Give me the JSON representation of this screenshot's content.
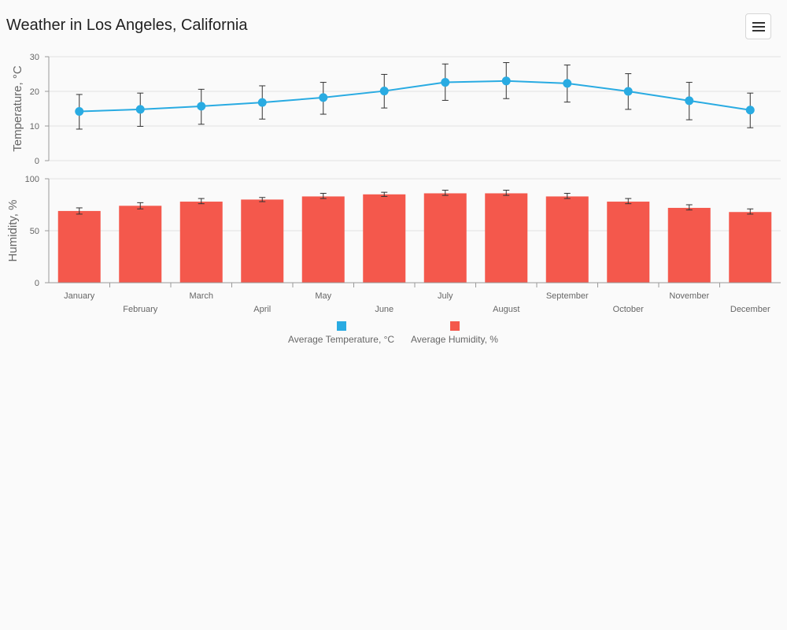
{
  "title": "Weather in Los Angeles, California",
  "menu": {
    "icon": "hamburger-menu-icon"
  },
  "colors": {
    "temperature": "#29abe2",
    "humidity": "#f4584c",
    "grid": "#e3e3e3",
    "axis": "#999999",
    "errorbar": "#333333"
  },
  "chart_data": {
    "type": "line+bar",
    "categories": [
      "January",
      "February",
      "March",
      "April",
      "May",
      "June",
      "July",
      "August",
      "September",
      "October",
      "November",
      "December"
    ],
    "panels": [
      {
        "type": "line",
        "ylabel": "Temperature, °C",
        "ylim": [
          0,
          30
        ],
        "yticks": [
          0,
          10,
          20,
          30
        ],
        "series": [
          {
            "name": "Average Temperature, °C",
            "values": [
              14.2,
              14.8,
              15.7,
              16.8,
              18.2,
              20.1,
              22.6,
              23.0,
              22.3,
              20.0,
              17.3,
              14.6
            ],
            "error_low": [
              9.1,
              9.9,
              10.5,
              12.0,
              13.4,
              15.2,
              17.4,
              17.9,
              16.9,
              14.8,
              11.8,
              9.5
            ],
            "error_high": [
              19.1,
              19.5,
              20.6,
              21.6,
              22.6,
              24.9,
              27.9,
              28.3,
              27.6,
              25.1,
              22.6,
              19.5
            ]
          }
        ],
        "grid": true
      },
      {
        "type": "bar",
        "ylabel": "Humidity, %",
        "ylim": [
          0,
          100
        ],
        "yticks": [
          0,
          50,
          100
        ],
        "series": [
          {
            "name": "Average Humidity, %",
            "values": [
              69,
              74,
              78,
              80,
              83,
              85,
              86,
              86,
              83,
              78,
              72,
              68
            ],
            "error_low": [
              66,
              71,
              76,
              78,
              81,
              83,
              84,
              84,
              81,
              76,
              70,
              66
            ],
            "error_high": [
              72,
              77,
              81,
              82,
              86,
              87,
              89,
              89,
              86,
              81,
              75,
              71
            ]
          }
        ],
        "grid": true
      }
    ],
    "legend_position": "bottom-center"
  }
}
